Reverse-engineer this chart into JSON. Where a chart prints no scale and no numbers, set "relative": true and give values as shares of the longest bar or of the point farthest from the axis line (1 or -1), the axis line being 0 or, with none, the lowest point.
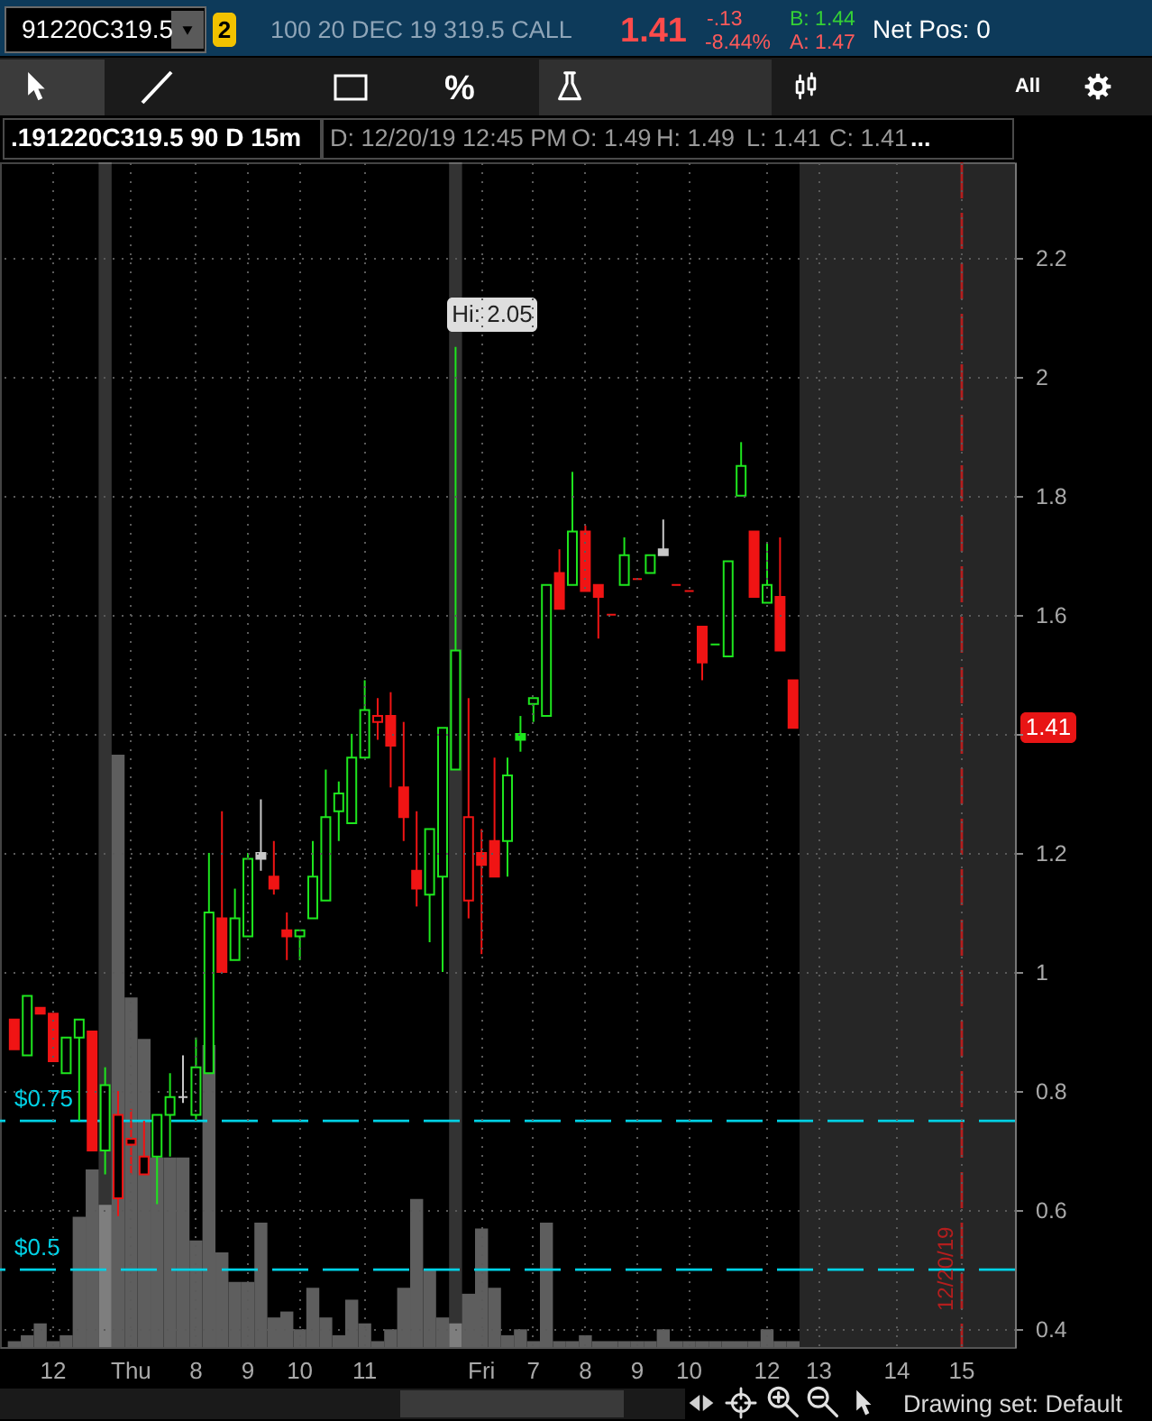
{
  "chart_data": [
    {
      "type": "candlestick",
      "categories": [
        null,
        null,
        null,
        "12",
        null,
        null,
        null,
        null,
        null,
        "Thu",
        null,
        null,
        null,
        null,
        "8",
        null,
        null,
        null,
        "9",
        null,
        null,
        null,
        "10",
        null,
        null,
        null,
        null,
        "11",
        null,
        null,
        null,
        null,
        null,
        null,
        null,
        null,
        "Fri",
        null,
        null,
        null,
        "7",
        null,
        null,
        null,
        "8",
        null,
        null,
        null,
        "9",
        null,
        null,
        null,
        "10",
        null,
        null,
        null,
        null,
        null,
        "12",
        null,
        null,
        null,
        "13",
        null,
        null,
        null,
        null,
        null,
        "14",
        null,
        null,
        null,
        null,
        "15",
        null,
        null,
        null
      ],
      "ohlc": [
        [
          0.92,
          0.92,
          0.87,
          0.87
        ],
        [
          0.86,
          0.96,
          0.86,
          0.96
        ],
        [
          0.94,
          0.94,
          0.93,
          0.93
        ],
        [
          0.93,
          0.93,
          0.85,
          0.85
        ],
        [
          0.83,
          0.89,
          0.83,
          0.89
        ],
        [
          0.89,
          0.92,
          0.75,
          0.92
        ],
        [
          0.9,
          0.9,
          0.7,
          0.7
        ],
        [
          0.7,
          0.84,
          0.66,
          0.81
        ],
        [
          0.62,
          0.8,
          0.59,
          0.76
        ],
        [
          0.71,
          0.77,
          0.66,
          0.72
        ],
        [
          0.66,
          0.75,
          0.66,
          0.69
        ],
        [
          0.69,
          0.76,
          0.61,
          0.76
        ],
        [
          0.76,
          0.83,
          0.69,
          0.79
        ],
        [
          0.79,
          0.86,
          0.78,
          0.79
        ],
        [
          0.76,
          0.89,
          0.75,
          0.84
        ],
        [
          0.83,
          1.2,
          0.83,
          1.1
        ],
        [
          1.09,
          1.27,
          1.0,
          1.0
        ],
        [
          1.02,
          1.14,
          1.02,
          1.09
        ],
        [
          1.06,
          1.2,
          1.06,
          1.19
        ],
        [
          1.2,
          1.29,
          1.17,
          1.19
        ],
        [
          1.16,
          1.22,
          1.13,
          1.14
        ],
        [
          1.07,
          1.1,
          1.02,
          1.06
        ],
        [
          1.06,
          1.07,
          1.02,
          1.07
        ],
        [
          1.09,
          1.22,
          1.09,
          1.16
        ],
        [
          1.12,
          1.34,
          1.12,
          1.26
        ],
        [
          1.27,
          1.32,
          1.22,
          1.3
        ],
        [
          1.25,
          1.4,
          1.25,
          1.36
        ],
        [
          1.36,
          1.49,
          1.36,
          1.44
        ],
        [
          1.42,
          1.46,
          1.39,
          1.43
        ],
        [
          1.43,
          1.47,
          1.31,
          1.38
        ],
        [
          1.31,
          1.42,
          1.22,
          1.26
        ],
        [
          1.17,
          1.27,
          1.11,
          1.14
        ],
        [
          1.13,
          1.24,
          1.05,
          1.24
        ],
        [
          1.16,
          1.41,
          1.0,
          1.41
        ],
        [
          1.34,
          2.05,
          1.34,
          1.54
        ],
        [
          1.12,
          1.46,
          1.09,
          1.26
        ],
        [
          1.2,
          1.24,
          1.03,
          1.18
        ],
        [
          1.22,
          1.36,
          1.16,
          1.16
        ],
        [
          1.22,
          1.36,
          1.16,
          1.33
        ],
        [
          1.4,
          1.43,
          1.37,
          1.39
        ],
        [
          1.45,
          1.46,
          1.42,
          1.46
        ],
        [
          1.43,
          1.65,
          1.43,
          1.65
        ],
        [
          1.67,
          1.71,
          1.61,
          1.61
        ],
        [
          1.65,
          1.84,
          1.65,
          1.74
        ],
        [
          1.74,
          1.75,
          1.64,
          1.64
        ],
        [
          1.65,
          1.65,
          1.56,
          1.63
        ],
        [
          1.6,
          1.6,
          1.6,
          1.6
        ],
        [
          1.65,
          1.73,
          1.65,
          1.7
        ],
        [
          1.66,
          1.66,
          1.66,
          1.66
        ],
        [
          1.67,
          1.7,
          1.67,
          1.7
        ],
        [
          1.71,
          1.76,
          1.7,
          1.7
        ],
        [
          1.65,
          1.65,
          1.65,
          1.65
        ],
        [
          1.64,
          1.64,
          1.64,
          1.64
        ],
        [
          1.58,
          1.58,
          1.49,
          1.52
        ],
        [
          1.55,
          1.55,
          1.55,
          1.55
        ],
        [
          1.53,
          1.69,
          1.53,
          1.69
        ],
        [
          1.8,
          1.89,
          1.8,
          1.85
        ],
        [
          1.74,
          1.74,
          1.63,
          1.63
        ],
        [
          1.62,
          1.72,
          1.62,
          1.65
        ],
        [
          1.63,
          1.73,
          1.54,
          1.54
        ],
        [
          1.49,
          1.49,
          1.41,
          1.41
        ],
        null,
        null,
        null,
        null,
        null,
        null,
        null,
        null,
        null,
        null,
        null,
        null,
        null,
        null,
        null,
        null
      ],
      "colors": [
        "#f01414",
        "#1ee61e",
        "#f01414",
        "#f01414",
        "#1ee61e",
        "#1ee61e",
        "#f01414",
        "#1ee61e",
        "#f01414",
        "#f01414",
        "#f01414",
        "#1ee61e",
        "#1ee61e",
        "#c8c8c8",
        "#1ee61e",
        "#1ee61e",
        "#f01414",
        "#1ee61e",
        "#1ee61e",
        "#c8c8c8",
        "#f01414",
        "#f01414",
        "#1ee61e",
        "#1ee61e",
        "#1ee61e",
        "#1ee61e",
        "#1ee61e",
        "#1ee61e",
        "#f01414",
        "#f01414",
        "#f01414",
        "#f01414",
        "#1ee61e",
        "#1ee61e",
        "#1ee61e",
        "#f01414",
        "#f01414",
        "#f01414",
        "#1ee61e",
        "#1ee61e",
        "#1ee61e",
        "#1ee61e",
        "#f01414",
        "#1ee61e",
        "#f01414",
        "#f01414",
        "#f01414",
        "#1ee61e",
        "#f01414",
        "#1ee61e",
        "#c8c8c8",
        "#f01414",
        "#f01414",
        "#f01414",
        "#1ee61e",
        "#1ee61e",
        "#1ee61e",
        "#f01414",
        "#1ee61e",
        "#f01414",
        "#f01414",
        null,
        null,
        null,
        null,
        null,
        null,
        null,
        null,
        null,
        null,
        null,
        null,
        null,
        null,
        null,
        null
      ],
      "ylim": [
        0.37,
        2.36
      ],
      "yticks": [
        0.4,
        0.6,
        0.8,
        1,
        1.2,
        {
          "value": 1.4,
          "label": null
        },
        1.6,
        1.8,
        2,
        2.2
      ],
      "grid": true,
      "ref_lines": [
        {
          "axis": "y",
          "value": 0.75,
          "label": "$0.75",
          "color": "#00d2e6",
          "line_style": "dashed"
        },
        {
          "axis": "y",
          "value": 0.5,
          "label": "$0.5",
          "color": "#00d2e6",
          "line_style": "dashed"
        },
        {
          "axis": "x",
          "value": "15",
          "color": "#b41e1e",
          "line_style": "dashed"
        }
      ],
      "annotations": [
        "91220C319.5",
        "2",
        "100 20 DEC 19 319.5 CALL",
        "1.41",
        "-.13",
        "-8.44%",
        "B: 1.44",
        "A: 1.47",
        "Net Pos: 0",
        "%",
        "All",
        ".191220C319.5 90 D 15m",
        "D: 12/20/19 12:45 PM",
        "O: 1.49",
        "H: 1.49",
        "L: 1.41",
        "C: 1.41",
        "...",
        "Hi: 2.05",
        "1.41",
        {
          "text": "12/20/19",
          "x": "15"
        },
        "Drawing set: Default"
      ]
    },
    {
      "type": "bar",
      "relative": true,
      "color": "#5e5e5e",
      "categories": [
        null,
        null,
        null,
        null,
        null,
        null,
        null,
        null,
        null,
        null,
        null,
        null,
        null,
        null,
        null,
        null,
        null,
        null,
        null,
        null,
        null,
        null,
        null,
        null,
        null,
        null,
        null,
        null,
        null,
        null,
        null,
        null,
        null,
        null,
        null,
        null,
        null,
        null,
        null,
        null,
        null,
        null,
        null,
        null,
        null,
        null,
        null,
        null,
        null,
        null,
        null,
        null,
        null,
        null,
        null,
        null,
        null,
        null,
        null,
        null,
        null,
        null,
        null,
        null,
        null,
        null,
        null,
        null,
        null,
        null,
        null,
        null,
        null,
        null,
        null,
        null,
        null
      ],
      "values": [
        0.01,
        0.02,
        0.04,
        0.01,
        0.02,
        0.22,
        0.3,
        0.24,
        1.0,
        0.59,
        0.52,
        0.32,
        0.32,
        0.32,
        0.18,
        0.51,
        0.16,
        0.11,
        0.11,
        0.21,
        0.05,
        0.06,
        0.03,
        0.1,
        0.05,
        0.02,
        0.08,
        0.04,
        0.01,
        0.03,
        0.1,
        0.25,
        0.13,
        0.05,
        0.04,
        0.09,
        0.2,
        0.1,
        0.02,
        0.03,
        0.01,
        0.21,
        0.01,
        0.01,
        0.02,
        0.01,
        0.01,
        0.01,
        0.01,
        0.01,
        0.03,
        0.01,
        0.01,
        0.01,
        0.01,
        0.01,
        0.01,
        0.01,
        0.03,
        0.01,
        0.01,
        null,
        null,
        null,
        null,
        null,
        null,
        null,
        null,
        null,
        null,
        null,
        null,
        null,
        null,
        null,
        null
      ]
    }
  ]
}
